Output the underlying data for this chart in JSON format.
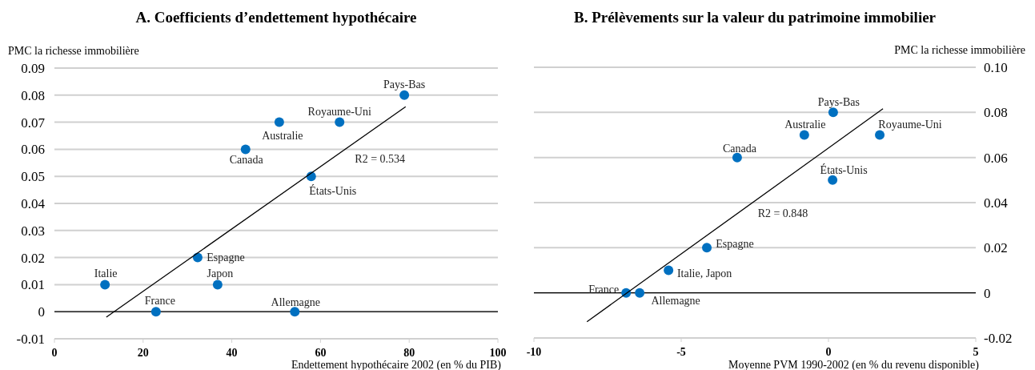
{
  "chart_data": [
    {
      "type": "scatter",
      "title": "A.  Coefficients d’endettement hypothécaire",
      "xlabel": "Endettement hypothécaire 2002 (en % du PIB)",
      "ylabel": "PMC la richesse immobilière",
      "xlim": [
        0,
        100
      ],
      "xticks": [
        0,
        20,
        40,
        60,
        80,
        100
      ],
      "ylim": [
        -0.01,
        0.09
      ],
      "yticks": [
        {
          "value": -0.01,
          "label": "-0.01"
        },
        {
          "value": 0,
          "label": "0"
        },
        {
          "value": 0.01,
          "label": "0.01"
        },
        {
          "value": 0.02,
          "label": "0.02"
        },
        {
          "value": 0.03,
          "label": "0.03"
        },
        {
          "value": 0.04,
          "label": "0.04"
        },
        {
          "value": 0.05,
          "label": "0.05"
        },
        {
          "value": 0.06,
          "label": "0.06"
        },
        {
          "value": 0.07,
          "label": "0.07"
        },
        {
          "value": 0.08,
          "label": "0.08"
        },
        {
          "value": 0.09,
          "label": "0.09"
        }
      ],
      "grid": "y",
      "marker": "circle",
      "series": [
        {
          "color": "#0070c0",
          "x": [
            11.4,
            22.9,
            32.3,
            36.8,
            43.1,
            50.7,
            54.2,
            57.9,
            64.3,
            78.9
          ],
          "values": [
            0.01,
            0,
            0.02,
            0.01,
            0.06,
            0.07,
            0,
            0.05,
            0.07,
            0.08
          ]
        },
        {
          "type": "line",
          "marker": "none",
          "color": "#000000",
          "x": [
            11.7,
            79.2
          ],
          "values": [
            -0.002,
            0.0757
          ]
        }
      ],
      "ref_lines": [
        {
          "axis": "y",
          "value": 0,
          "color": "#000000"
        }
      ],
      "annotations": [
        {
          "text": "Pays-Bas",
          "x": 78.9,
          "y": 0.08
        },
        {
          "text": "Royaume-Uni",
          "x": 64.3,
          "y": 0.07
        },
        {
          "text": "Australie",
          "x": 50.7,
          "y": 0.07
        },
        {
          "text": "Canada",
          "x": 43.1,
          "y": 0.06
        },
        {
          "text": "R2 = 0.534",
          "x": 68,
          "y": 0.0628
        },
        {
          "text": "États-Unis",
          "x": 57.9,
          "y": 0.05
        },
        {
          "text": "Espagne",
          "x": 32.3,
          "y": 0.02
        },
        {
          "text": "Italie",
          "x": 11.4,
          "y": 0.01
        },
        {
          "text": "Japon",
          "x": 36.8,
          "y": 0.01
        },
        {
          "text": "France",
          "x": 22.9,
          "y": 0
        },
        {
          "text": "Allemagne",
          "x": 54.2,
          "y": 0
        }
      ]
    },
    {
      "type": "scatter",
      "title": "B.  Prélèvements sur la valeur du patrimoine immobilier",
      "xlabel": "Moyenne PVM 1990-2002 (en % du revenu disponible)",
      "ylabel": "PMC la richesse immobilière",
      "xlim": [
        -10,
        5
      ],
      "xticks": [
        -10,
        -5,
        0,
        5
      ],
      "ylim": [
        -0.02,
        0.1
      ],
      "yticks": [
        {
          "value": -0.02,
          "label": "-0.02"
        },
        {
          "value": 0,
          "label": "0"
        },
        {
          "value": 0.02,
          "label": "0.02"
        },
        {
          "value": 0.04,
          "label": "0.04"
        },
        {
          "value": 0.06,
          "label": "0.06"
        },
        {
          "value": 0.08,
          "label": "0.08"
        },
        {
          "value": 0.1,
          "label": "0.10"
        }
      ],
      "grid": "y",
      "marker": "circle",
      "series": [
        {
          "color": "#0070c0",
          "x": [
            -6.87,
            -6.41,
            -5.43,
            -4.13,
            -3.1,
            -0.82,
            0.16,
            0.14,
            1.74
          ],
          "values": [
            0,
            0,
            0.01,
            0.02,
            0.06,
            0.07,
            0.08,
            0.05,
            0.07
          ]
        },
        {
          "type": "line",
          "marker": "none",
          "color": "#000000",
          "x": [
            -8.2,
            1.85
          ],
          "values": [
            -0.0128,
            0.0816
          ]
        }
      ],
      "ref_lines": [
        {
          "axis": "y",
          "value": 0,
          "color": "#000000"
        }
      ],
      "annotations": [
        {
          "text": "Pays-Bas",
          "x": 0.16,
          "y": 0.08
        },
        {
          "text": "Australie",
          "x": -0.82,
          "y": 0.07
        },
        {
          "text": "Royaume-Uni",
          "x": 1.74,
          "y": 0.07
        },
        {
          "text": "Canada",
          "x": -3.1,
          "y": 0.06
        },
        {
          "text": "États-Unis",
          "x": 0.14,
          "y": 0.05
        },
        {
          "text": "R2 = 0.848",
          "x": -2.5,
          "y": 0.0407
        },
        {
          "text": "Espagne",
          "x": -4.13,
          "y": 0.02
        },
        {
          "text": "Italie, Japon",
          "x": -5.43,
          "y": 0.01
        },
        {
          "text": "France",
          "x": -6.87,
          "y": 0
        },
        {
          "text": "Allemagne",
          "x": -6.41,
          "y": 0
        }
      ]
    }
  ]
}
